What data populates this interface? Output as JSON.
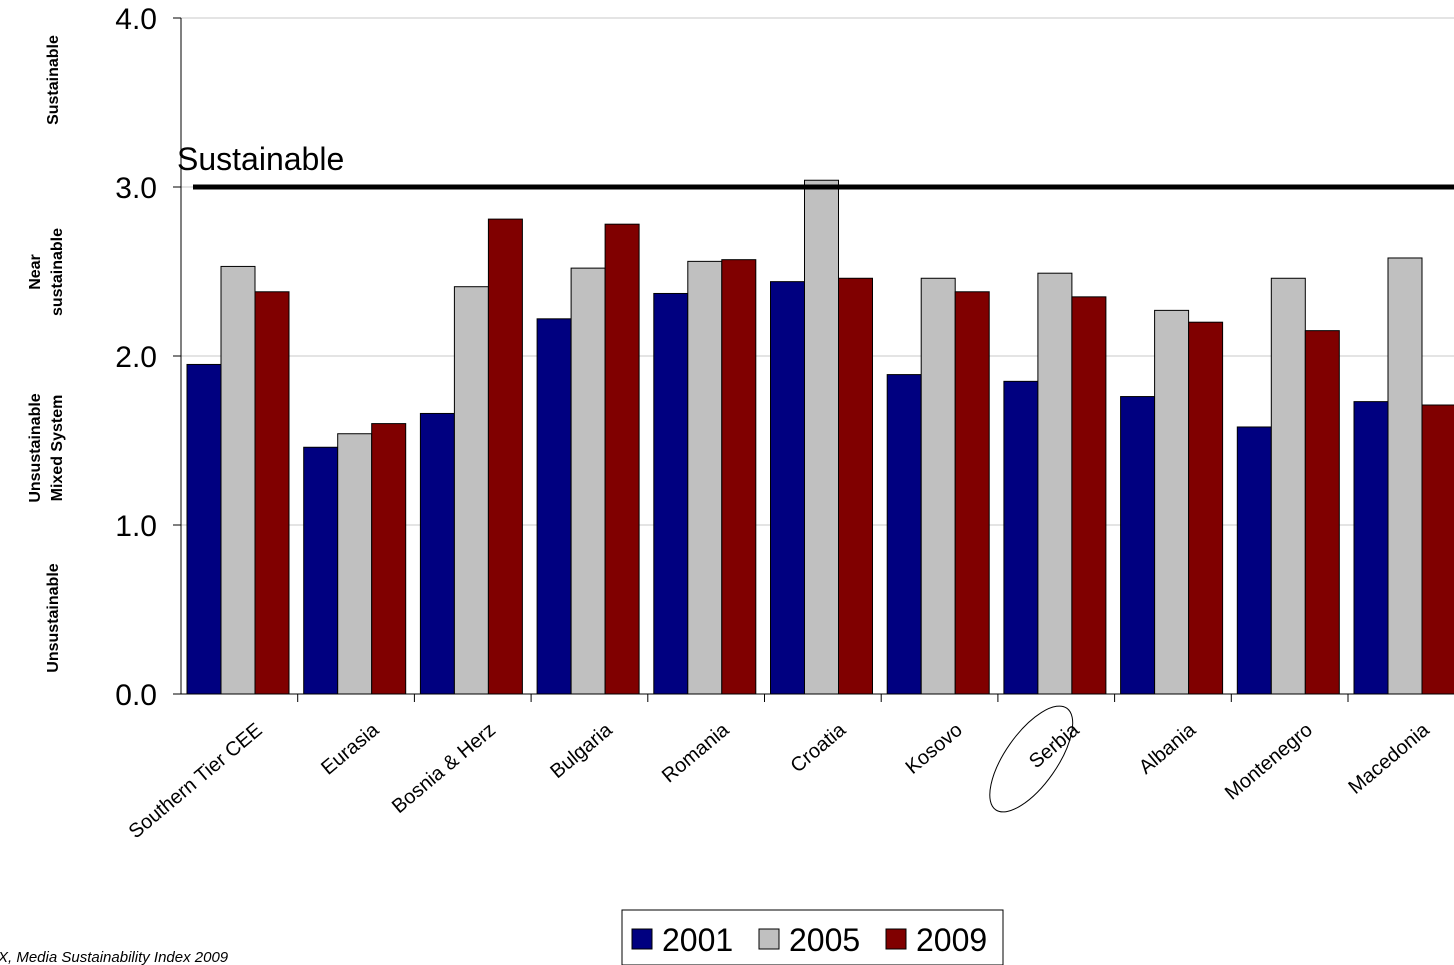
{
  "chart_data": {
    "type": "bar",
    "categories": [
      "Southern Tier CEE",
      "Eurasia",
      "Bosnia & Herz",
      "Bulgaria",
      "Romania",
      "Croatia",
      "Kosovo",
      "Serbia",
      "Albania",
      "Montenegro",
      "Macedonia"
    ],
    "series": [
      {
        "name": "2001",
        "color": "#000080",
        "values": [
          1.95,
          1.46,
          1.66,
          2.22,
          2.37,
          2.44,
          1.89,
          1.85,
          1.76,
          1.58,
          1.73
        ]
      },
      {
        "name": "2005",
        "color": "#C0C0C0",
        "values": [
          2.53,
          1.54,
          2.41,
          2.52,
          2.56,
          3.04,
          2.46,
          2.49,
          2.27,
          2.46,
          2.58
        ]
      },
      {
        "name": "2009",
        "color": "#800000",
        "values": [
          2.38,
          1.6,
          2.81,
          2.78,
          2.57,
          2.46,
          2.38,
          2.35,
          2.2,
          2.15,
          1.71
        ]
      }
    ],
    "ylim": [
      0,
      4
    ],
    "yticks": [
      "0.0",
      "1.0",
      "2.0",
      "3.0",
      "4.0"
    ],
    "gridlines": true,
    "reference_line": {
      "value": 3.0,
      "label": "Sustainable"
    },
    "highlighted_category": "Serbia",
    "band_labels": [
      {
        "lines": [
          "Sustainable"
        ]
      },
      {
        "lines": [
          "Near",
          "sustainable"
        ]
      },
      {
        "lines": [
          "Unsustainable",
          "Mixed System"
        ]
      },
      {
        "lines": [
          "Unsustainable"
        ]
      }
    ],
    "legend_position": "bottom-center",
    "source_note": "X, Media Sustainability Index 2009"
  }
}
